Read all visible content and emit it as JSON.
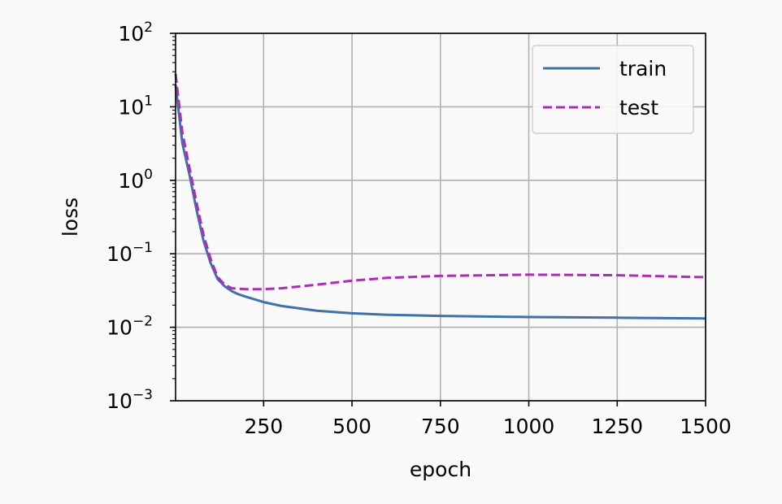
{
  "chart_data": {
    "type": "line",
    "xlabel": "epoch",
    "ylabel": "loss",
    "xlim": [
      1,
      1500
    ],
    "ylim": [
      0.001,
      100
    ],
    "yscale": "log",
    "grid": true,
    "legend_position": "top-right",
    "x_ticks": [
      250,
      500,
      750,
      1000,
      1250,
      1500
    ],
    "x_tick_labels": [
      "250",
      "500",
      "750",
      "1000",
      "1250",
      "1500"
    ],
    "y_ticks": [
      {
        "value": 100,
        "base": "10",
        "exp": "2"
      },
      {
        "value": 10,
        "base": "10",
        "exp": "1"
      },
      {
        "value": 1,
        "base": "10",
        "exp": "0"
      },
      {
        "value": 0.1,
        "base": "10",
        "exp": "−1"
      },
      {
        "value": 0.01,
        "base": "10",
        "exp": "−2"
      },
      {
        "value": 0.001,
        "base": "10",
        "exp": "−3"
      }
    ],
    "series": [
      {
        "name": "train",
        "color": "#3f72a8",
        "dash": "solid",
        "x": [
          1,
          20,
          40,
          60,
          80,
          100,
          120,
          140,
          160,
          180,
          200,
          250,
          300,
          400,
          500,
          600,
          750,
          1000,
          1250,
          1500
        ],
        "y": [
          20,
          3.2,
          1.2,
          0.4,
          0.15,
          0.075,
          0.045,
          0.036,
          0.031,
          0.028,
          0.026,
          0.022,
          0.0195,
          0.0168,
          0.0155,
          0.0148,
          0.0143,
          0.0138,
          0.0135,
          0.0132
        ]
      },
      {
        "name": "test",
        "color": "#b02cb8",
        "dash": "dashed",
        "x": [
          1,
          20,
          40,
          60,
          80,
          100,
          120,
          140,
          160,
          200,
          250,
          300,
          400,
          500,
          600,
          750,
          1000,
          1250,
          1500
        ],
        "y": [
          28,
          4.5,
          1.5,
          0.5,
          0.18,
          0.085,
          0.048,
          0.038,
          0.034,
          0.033,
          0.033,
          0.034,
          0.038,
          0.043,
          0.047,
          0.05,
          0.052,
          0.051,
          0.048
        ]
      }
    ]
  }
}
